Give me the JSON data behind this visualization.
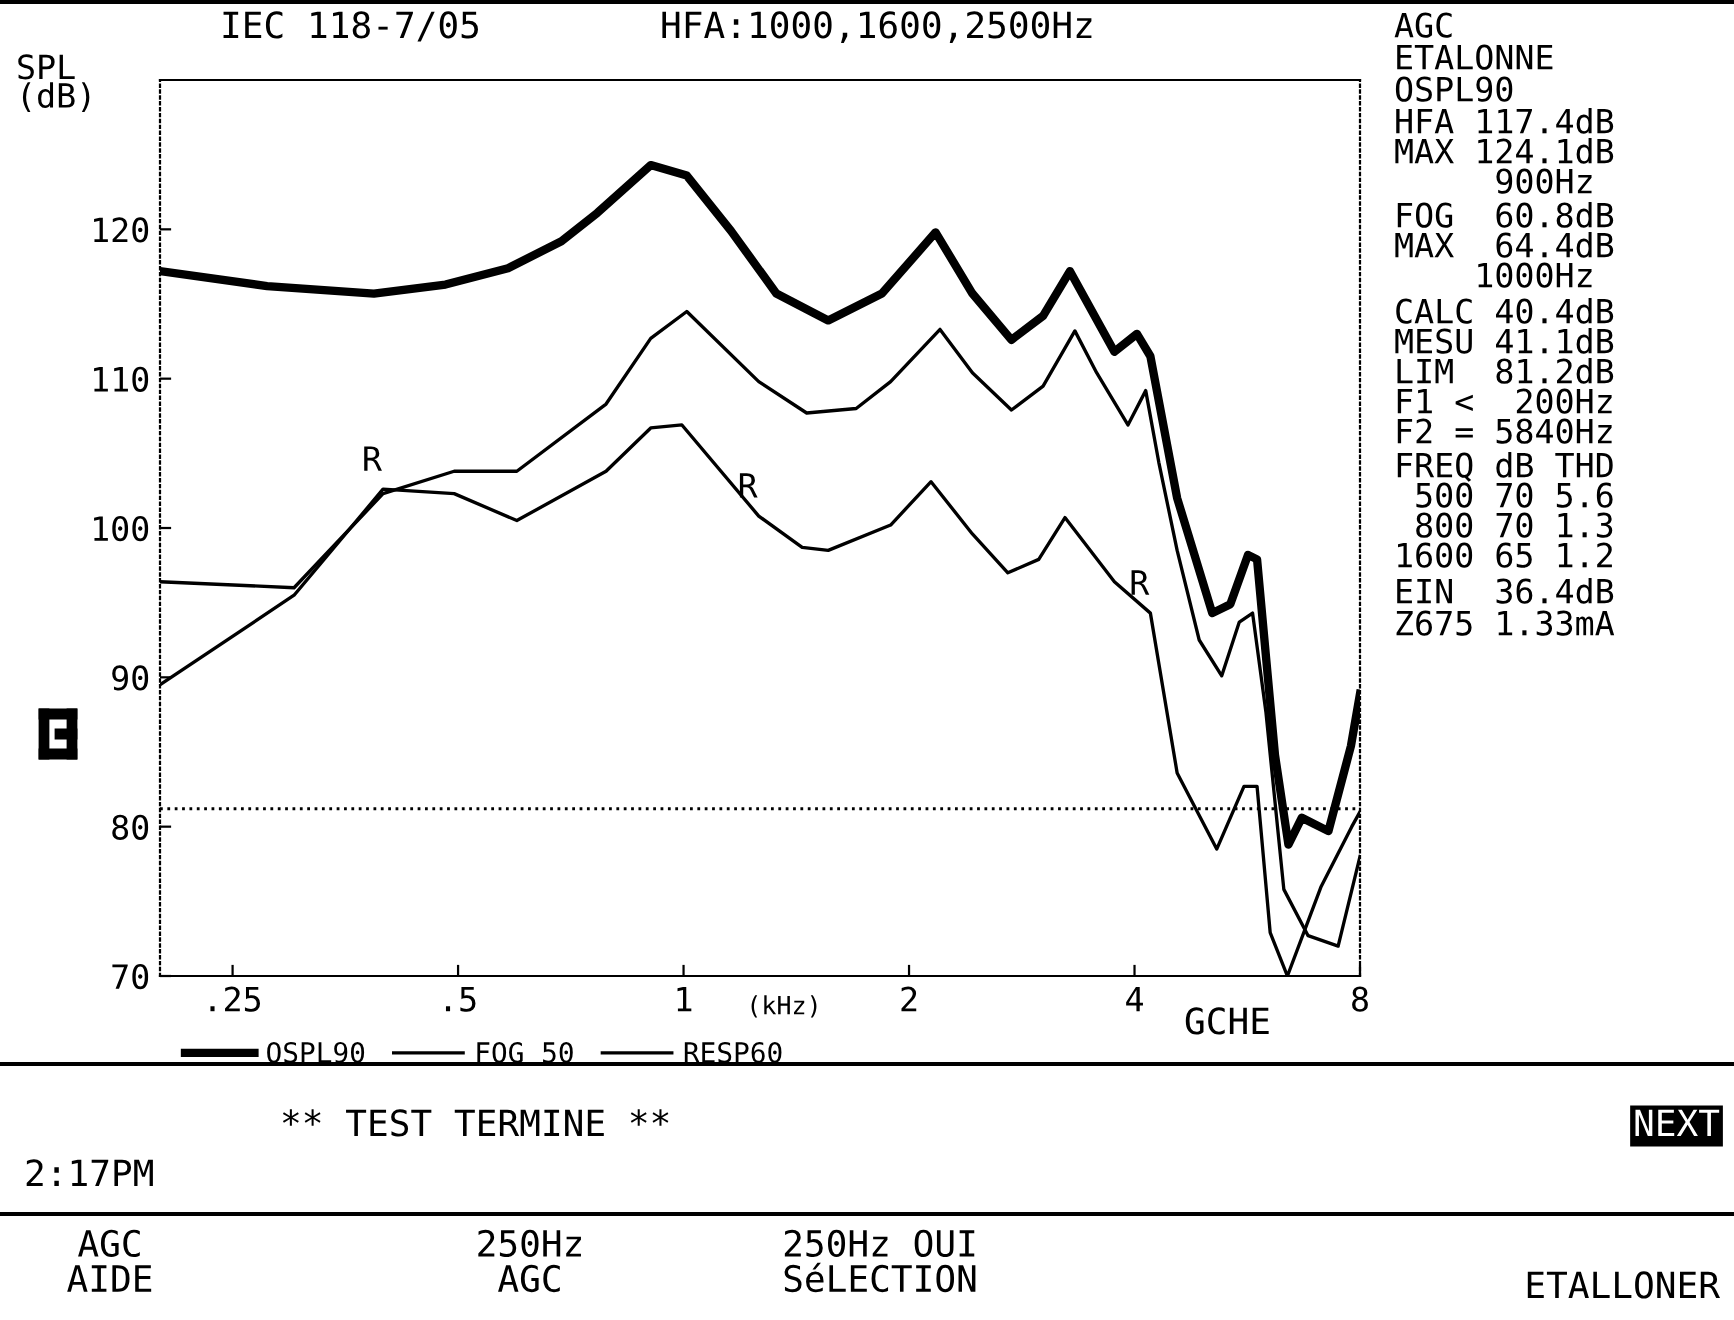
{
  "chart_data": {
    "type": "line",
    "title": "IEC 118-7/05",
    "subtitle": "HFA:1000,1600,2500Hz",
    "ylabel": "SPL\n(dB)",
    "xlabel": "(kHz)",
    "log": "x",
    "xlim": [
      0.2,
      8
    ],
    "ylim": [
      70,
      130
    ],
    "xticks": [
      {
        "value": 0.25,
        "label": ".25"
      },
      {
        "value": 0.5,
        "label": ".5"
      },
      1,
      2,
      4,
      8
    ],
    "yticks": [
      70,
      80,
      90,
      100,
      110,
      120
    ],
    "legend": "bottom",
    "ref_lines": [
      {
        "axis": "y",
        "value": 81.2,
        "color": "#000000",
        "line_style": "dotted"
      }
    ],
    "series": [
      {
        "name": "OSPL90",
        "color": "#000000",
        "x": [
          0.2,
          0.278,
          0.386,
          0.481,
          0.583,
          0.687,
          0.767,
          0.904,
          1.01,
          1.157,
          1.33,
          1.56,
          1.84,
          2.17,
          2.43,
          2.74,
          3.02,
          3.28,
          3.76,
          4.03,
          4.2,
          4.56,
          5.08,
          5.37,
          5.67,
          5.83,
          6.16,
          6.42,
          6.69,
          7.26,
          7.78,
          8.0
        ],
        "values": [
          117.2,
          116.2,
          115.7,
          116.3,
          117.4,
          119.2,
          121.1,
          124.3,
          123.6,
          119.9,
          115.7,
          113.9,
          115.7,
          119.8,
          115.7,
          112.6,
          114.2,
          117.2,
          111.8,
          113.0,
          111.5,
          102.0,
          94.3,
          94.9,
          98.2,
          97.9,
          84.8,
          78.8,
          80.6,
          79.7,
          85.4,
          88.9
        ]
      },
      {
        "name": "FOG 50",
        "color": "#000000",
        "x": [
          0.2,
          0.302,
          0.397,
          0.494,
          0.599,
          0.788,
          0.904,
          1.01,
          1.26,
          1.46,
          1.7,
          1.89,
          2.2,
          2.43,
          2.74,
          3.02,
          3.33,
          3.56,
          3.92,
          4.14,
          4.31,
          4.56,
          4.88,
          5.23,
          5.52,
          5.75,
          5.99,
          6.33,
          6.82,
          7.48,
          8.0
        ],
        "values": [
          96.4,
          96.0,
          102.3,
          103.8,
          103.8,
          108.3,
          112.7,
          114.5,
          109.8,
          107.7,
          108.0,
          109.8,
          113.3,
          110.4,
          107.9,
          109.5,
          113.2,
          110.4,
          106.9,
          109.2,
          104.4,
          98.5,
          92.5,
          90.1,
          93.7,
          94.3,
          87.7,
          75.8,
          72.7,
          72.0,
          78.0
        ]
      },
      {
        "name": "RESP60",
        "color": "#000000",
        "x": [
          0.2,
          0.302,
          0.397,
          0.494,
          0.599,
          0.788,
          0.904,
          0.995,
          1.26,
          1.44,
          1.56,
          1.89,
          2.14,
          2.43,
          2.71,
          2.98,
          3.23,
          3.76,
          4.2,
          4.56,
          5.15,
          5.6,
          5.83,
          6.07,
          6.4,
          7.1,
          7.8,
          8.0
        ],
        "values": [
          89.5,
          95.5,
          102.6,
          102.3,
          100.5,
          103.8,
          106.7,
          106.9,
          100.8,
          98.7,
          98.5,
          100.2,
          103.1,
          99.6,
          97.0,
          97.9,
          100.7,
          96.4,
          94.3,
          83.6,
          78.5,
          82.7,
          82.7,
          72.9,
          70.0,
          76.0,
          80.0,
          81.0
        ]
      }
    ],
    "annotations": [
      {
        "text": "R",
        "x": 0.397,
        "y": 102.6
      },
      {
        "text": "R",
        "x": 1.26,
        "y": 100.8
      },
      {
        "text": "R",
        "x": 4.2,
        "y": 94.3
      },
      "GCHE",
      "AGC",
      "ETALONNE",
      "OSPL90",
      "HFA 117.4dB",
      "MAX 124.1dB",
      "     900Hz",
      "FOG  60.8dB",
      "MAX  64.4dB",
      "    1000Hz",
      "CALC 40.4dB",
      "MESU 41.1dB",
      "LIM  81.2dB",
      "F1 <  200Hz",
      "F2 = 5840Hz",
      "FREQ dB THD",
      " 500 70 5.6",
      " 800 70 1.3",
      "1600 65 1.2",
      "EIN  36.4dB",
      "Z675 1.33mA",
      "** TEST TERMINE **",
      "2:17PM",
      "NEXT",
      "AGC\nAIDE",
      "250Hz\nAGC",
      "250Hz OUI\nSéLECTION",
      "ETALLONER"
    ]
  }
}
